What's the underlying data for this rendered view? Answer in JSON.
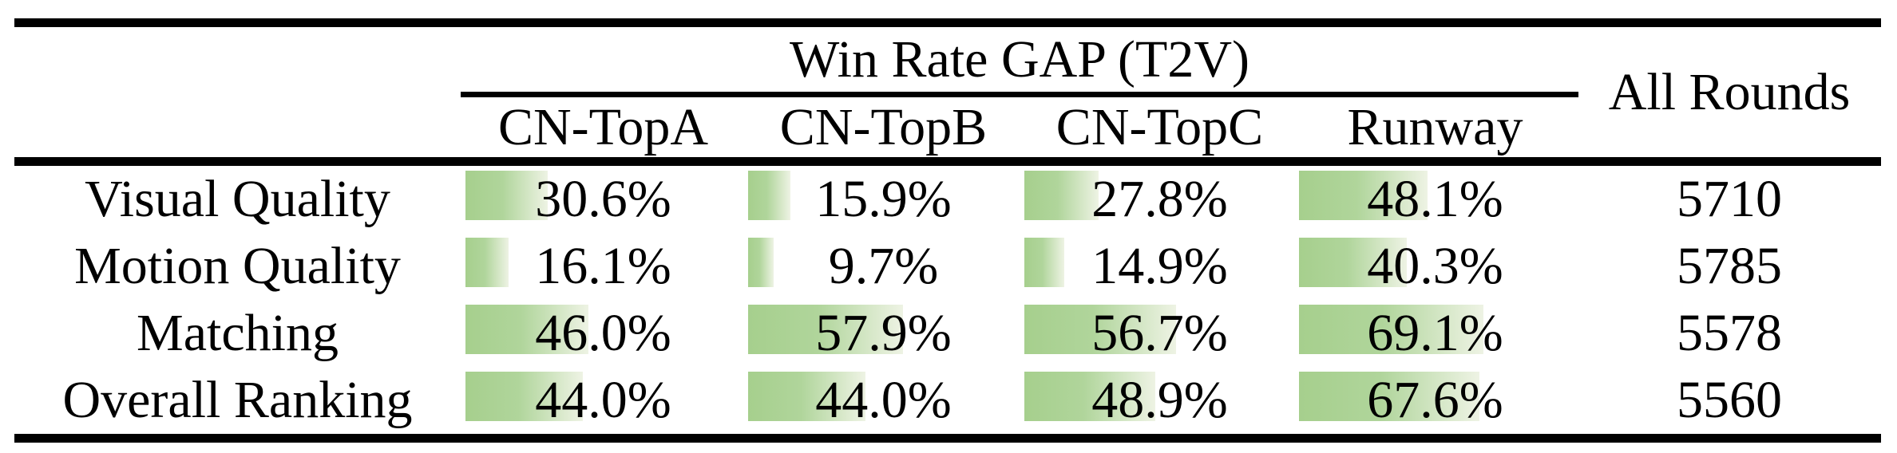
{
  "table": {
    "group_header": "Win Rate GAP (T2V)",
    "all_rounds_header": "All Rounds",
    "columns": [
      "CN-TopA",
      "CN-TopB",
      "CN-TopC",
      "Runway"
    ],
    "bar_color_left": "#a6cf8d",
    "bar_color_right": "#eef3e4",
    "rows": [
      {
        "label": "Visual Quality",
        "values": [
          "30.6%",
          "15.9%",
          "27.8%",
          "48.1%"
        ],
        "all_rounds": "5710"
      },
      {
        "label": "Motion Quality",
        "values": [
          "16.1%",
          "9.7%",
          "14.9%",
          "40.3%"
        ],
        "all_rounds": "5785"
      },
      {
        "label": "Matching",
        "values": [
          "46.0%",
          "57.9%",
          "56.7%",
          "69.1%"
        ],
        "all_rounds": "5578"
      },
      {
        "label": "Overall Ranking",
        "values": [
          "44.0%",
          "44.0%",
          "48.9%",
          "67.6%"
        ],
        "all_rounds": "5560"
      }
    ]
  }
}
